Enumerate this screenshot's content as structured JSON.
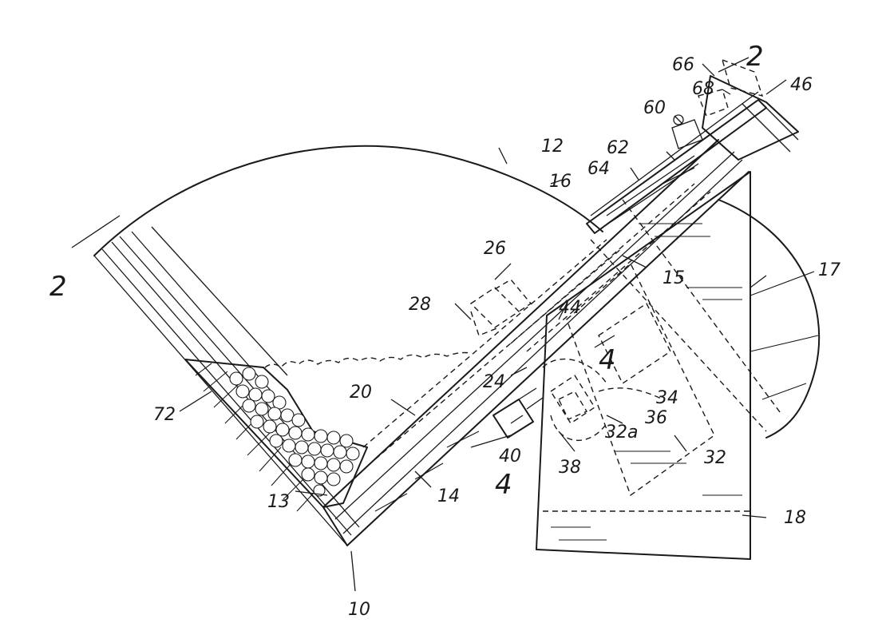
{
  "figure": {
    "labels": {
      "l2_left": "2",
      "l2_right": "2",
      "l4_upper": "4",
      "l4_lower": "4",
      "l10": "10",
      "l12": "12",
      "l13": "13",
      "l14": "14",
      "l15": "15",
      "l16": "16",
      "l17": "17",
      "l18": "18",
      "l20": "20",
      "l24": "24",
      "l26": "26",
      "l28": "28",
      "l32": "32",
      "l32a": "32a",
      "l34": "34",
      "l36": "36",
      "l38": "38",
      "l40": "40",
      "l44": "44",
      "l46": "46",
      "l60": "60",
      "l62": "62",
      "l64": "64",
      "l66": "66",
      "l68": "68",
      "l72": "72"
    }
  }
}
